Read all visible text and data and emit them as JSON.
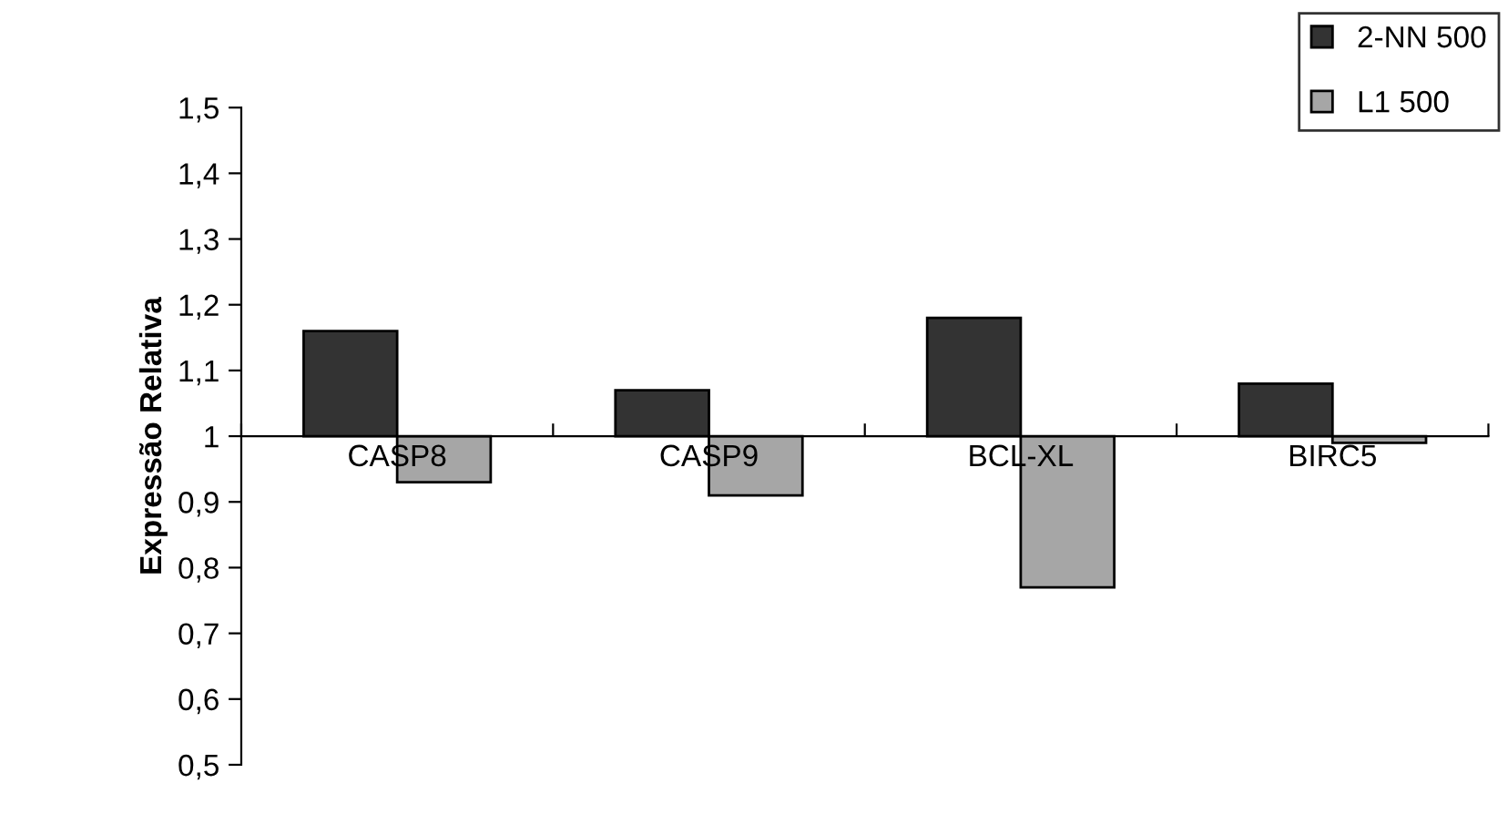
{
  "chart_data": {
    "type": "bar",
    "ylabel": "Expressão Relativa",
    "categories": [
      "CASP8",
      "CASP9",
      "BCL-XL",
      "BIRC5"
    ],
    "series": [
      {
        "name": "2-NN 500",
        "color": "#333333",
        "base": [
          1,
          1,
          1,
          1
        ],
        "values": [
          0.16,
          0.07,
          0.18,
          0.08
        ]
      },
      {
        "name": "L1 500",
        "color": "#a6a6a6",
        "base": [
          1,
          1,
          1,
          1
        ],
        "values": [
          -0.07,
          -0.09,
          -0.23,
          -0.01
        ]
      }
    ],
    "ylim": [
      0.5,
      1.5
    ],
    "yticks": [
      {
        "value": 0.5,
        "label": "0,5"
      },
      {
        "value": 0.6,
        "label": "0,6"
      },
      {
        "value": 0.7,
        "label": "0,7"
      },
      {
        "value": 0.8,
        "label": "0,8"
      },
      {
        "value": 0.9,
        "label": "0,9"
      },
      1,
      {
        "value": 1.1,
        "label": "1,1"
      },
      {
        "value": 1.2,
        "label": "1,2"
      },
      {
        "value": 1.3,
        "label": "1,3"
      },
      {
        "value": 1.4,
        "label": "1,4"
      },
      {
        "value": 1.5,
        "label": "1,5"
      }
    ],
    "grid": false,
    "legend": "top right"
  }
}
